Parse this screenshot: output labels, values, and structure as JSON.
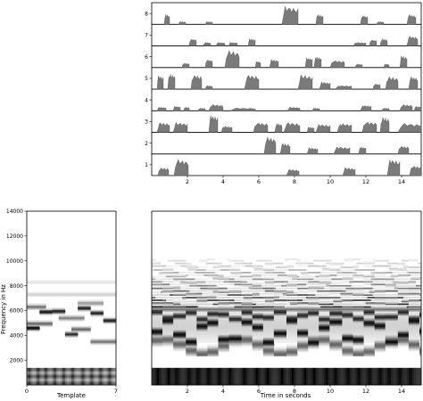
{
  "chart_data": [
    {
      "type": "area",
      "title": "",
      "xlabel": "",
      "ylabel": "",
      "xlim": [
        0,
        15.1
      ],
      "x_ticks": [
        2,
        4,
        6,
        8,
        10,
        12,
        14
      ],
      "row_labels": [
        "1",
        "2",
        "3",
        "4",
        "5",
        "6",
        "7",
        "8"
      ],
      "series": [
        {
          "row": "1",
          "activations": [
            {
              "start": 0.35,
              "end": 0.95,
              "level": 0.45
            },
            {
              "start": 1.25,
              "end": 2.05,
              "level": 0.9
            },
            {
              "start": 7.55,
              "end": 8.25,
              "level": 0.35
            },
            {
              "start": 10.7,
              "end": 11.4,
              "level": 0.45
            },
            {
              "start": 13.2,
              "end": 13.9,
              "level": 0.9
            },
            {
              "start": 14.45,
              "end": 15.1,
              "level": 0.55
            }
          ]
        },
        {
          "row": "2",
          "activations": [
            {
              "start": 6.3,
              "end": 6.95,
              "level": 0.95
            },
            {
              "start": 7.2,
              "end": 7.75,
              "level": 0.6
            },
            {
              "start": 8.7,
              "end": 9.3,
              "level": 0.35
            },
            {
              "start": 10.2,
              "end": 11.1,
              "level": 0.4
            },
            {
              "start": 11.6,
              "end": 12.0,
              "level": 0.4
            },
            {
              "start": 13.8,
              "end": 14.4,
              "level": 0.45
            }
          ]
        },
        {
          "row": "3",
          "activations": [
            {
              "start": 0.3,
              "end": 1.0,
              "level": 0.55
            },
            {
              "start": 1.2,
              "end": 2.0,
              "level": 0.55
            },
            {
              "start": 3.2,
              "end": 3.7,
              "level": 0.95
            },
            {
              "start": 3.9,
              "end": 4.5,
              "level": 0.35
            },
            {
              "start": 5.7,
              "end": 6.5,
              "level": 0.55
            },
            {
              "start": 6.9,
              "end": 7.3,
              "level": 0.5
            },
            {
              "start": 7.4,
              "end": 8.3,
              "level": 0.55
            },
            {
              "start": 8.7,
              "end": 9.1,
              "level": 0.3
            },
            {
              "start": 9.2,
              "end": 10.0,
              "level": 0.45
            },
            {
              "start": 10.4,
              "end": 11.2,
              "level": 0.5
            },
            {
              "start": 11.8,
              "end": 12.6,
              "level": 0.6
            },
            {
              "start": 12.8,
              "end": 13.3,
              "level": 0.85
            },
            {
              "start": 13.8,
              "end": 15.1,
              "level": 0.5
            }
          ]
        },
        {
          "row": "4",
          "activations": [
            {
              "start": 0.3,
              "end": 0.8,
              "level": 0.2
            },
            {
              "start": 1.2,
              "end": 1.6,
              "level": 0.25
            },
            {
              "start": 1.8,
              "end": 2.1,
              "level": 0.2
            },
            {
              "start": 2.6,
              "end": 3.0,
              "level": 0.15
            },
            {
              "start": 3.2,
              "end": 4.0,
              "level": 0.35
            },
            {
              "start": 4.4,
              "end": 5.8,
              "level": 0.15
            },
            {
              "start": 7.6,
              "end": 8.3,
              "level": 0.2
            },
            {
              "start": 9.0,
              "end": 9.4,
              "level": 0.15
            },
            {
              "start": 11.7,
              "end": 12.3,
              "level": 0.3
            },
            {
              "start": 12.9,
              "end": 13.3,
              "level": 0.15
            },
            {
              "start": 13.9,
              "end": 14.6,
              "level": 0.35
            },
            {
              "start": 14.7,
              "end": 15.1,
              "level": 0.25
            }
          ]
        },
        {
          "row": "5",
          "activations": [
            {
              "start": 0.3,
              "end": 0.65,
              "level": 0.75
            },
            {
              "start": 0.9,
              "end": 1.3,
              "level": 0.85
            },
            {
              "start": 2.2,
              "end": 2.8,
              "level": 0.8
            },
            {
              "start": 3.0,
              "end": 3.4,
              "level": 0.2
            },
            {
              "start": 5.2,
              "end": 6.0,
              "level": 0.8
            },
            {
              "start": 8.2,
              "end": 9.0,
              "level": 0.8
            },
            {
              "start": 9.4,
              "end": 10.0,
              "level": 0.4
            },
            {
              "start": 10.3,
              "end": 11.2,
              "level": 0.2
            },
            {
              "start": 12.4,
              "end": 12.8,
              "level": 0.3
            },
            {
              "start": 13.1,
              "end": 13.8,
              "level": 0.7
            },
            {
              "start": 14.4,
              "end": 14.9,
              "level": 0.7
            }
          ]
        },
        {
          "row": "6",
          "activations": [
            {
              "start": 1.7,
              "end": 2.1,
              "level": 0.25
            },
            {
              "start": 3.0,
              "end": 3.4,
              "level": 0.45
            },
            {
              "start": 4.1,
              "end": 4.9,
              "level": 0.95
            },
            {
              "start": 5.8,
              "end": 6.1,
              "level": 0.35
            },
            {
              "start": 6.6,
              "end": 7.1,
              "level": 0.45
            },
            {
              "start": 8.6,
              "end": 9.0,
              "level": 0.55
            },
            {
              "start": 9.1,
              "end": 9.5,
              "level": 0.6
            },
            {
              "start": 10.0,
              "end": 10.8,
              "level": 0.4
            },
            {
              "start": 11.4,
              "end": 11.8,
              "level": 0.2
            },
            {
              "start": 13.0,
              "end": 13.3,
              "level": 0.2
            },
            {
              "start": 13.9,
              "end": 14.3,
              "level": 0.65
            }
          ]
        },
        {
          "row": "7",
          "activations": [
            {
              "start": 2.1,
              "end": 2.5,
              "level": 0.4
            },
            {
              "start": 2.9,
              "end": 3.3,
              "level": 0.2
            },
            {
              "start": 3.6,
              "end": 4.1,
              "level": 0.2
            },
            {
              "start": 4.3,
              "end": 4.8,
              "level": 0.2
            },
            {
              "start": 5.4,
              "end": 5.8,
              "level": 0.4
            },
            {
              "start": 11.3,
              "end": 12.0,
              "level": 0.2
            },
            {
              "start": 12.2,
              "end": 12.6,
              "level": 0.35
            },
            {
              "start": 12.8,
              "end": 13.2,
              "level": 0.4
            },
            {
              "start": 14.3,
              "end": 14.9,
              "level": 0.55
            }
          ]
        },
        {
          "row": "8",
          "activations": [
            {
              "start": 0.7,
              "end": 1.0,
              "level": 0.55
            },
            {
              "start": 1.5,
              "end": 1.9,
              "level": 0.15
            },
            {
              "start": 3.0,
              "end": 3.4,
              "level": 0.15
            },
            {
              "start": 7.3,
              "end": 8.2,
              "level": 1.0
            },
            {
              "start": 9.2,
              "end": 9.6,
              "level": 0.55
            },
            {
              "start": 11.7,
              "end": 12.1,
              "level": 0.5
            },
            {
              "start": 12.6,
              "end": 13.0,
              "level": 0.15
            },
            {
              "start": 14.3,
              "end": 14.8,
              "level": 0.55
            }
          ]
        }
      ]
    },
    {
      "type": "heatmap",
      "title": "",
      "xlabel": "Template",
      "ylabel": "Frequency in Hz",
      "xlim": [
        0,
        7
      ],
      "ylim": [
        0,
        14000
      ],
      "x_ticks": [
        0,
        7
      ],
      "y_ticks": [
        2000,
        4000,
        6000,
        8000,
        10000,
        12000,
        14000
      ],
      "colormap": "gray_r",
      "onsets": [
        0.2,
        0.9,
        1.5,
        2.2,
        2.9,
        3.6,
        4.4,
        5.1,
        5.8,
        6.5
      ],
      "low_band_hz": [
        0,
        1400
      ],
      "peaks": [
        {
          "x0": 0.0,
          "x1": 1.0,
          "hz": 4600,
          "w": 1.0
        },
        {
          "x0": 1.0,
          "x1": 2.0,
          "hz": 5900,
          "w": 0.95
        },
        {
          "x0": 2.0,
          "x1": 3.0,
          "hz": 5950,
          "w": 0.9
        },
        {
          "x0": 3.0,
          "x1": 4.0,
          "hz": 4100,
          "w": 0.85
        },
        {
          "x0": 4.0,
          "x1": 5.0,
          "hz": 6200,
          "w": 0.9
        },
        {
          "x0": 5.0,
          "x1": 6.0,
          "hz": 5800,
          "w": 0.9
        },
        {
          "x0": 6.0,
          "x1": 7.0,
          "hz": 5200,
          "w": 0.9
        },
        {
          "x0": 0.0,
          "x1": 2.0,
          "hz": 4950,
          "w": 0.6
        },
        {
          "x0": 2.5,
          "x1": 4.5,
          "hz": 5400,
          "w": 0.5
        },
        {
          "x0": 3.5,
          "x1": 5.0,
          "hz": 4500,
          "w": 0.6
        },
        {
          "x0": 5.0,
          "x1": 7.0,
          "hz": 3500,
          "w": 0.55
        },
        {
          "x0": 0.0,
          "x1": 1.5,
          "hz": 6300,
          "w": 0.55
        },
        {
          "x0": 4.0,
          "x1": 6.0,
          "hz": 6600,
          "w": 0.4
        },
        {
          "x0": 0.0,
          "x1": 7.0,
          "hz": 7300,
          "w": 0.2
        },
        {
          "x0": 0.0,
          "x1": 7.0,
          "hz": 8300,
          "w": 0.12
        }
      ]
    },
    {
      "type": "heatmap",
      "title": "",
      "xlabel": "Time in seconds",
      "ylabel": "",
      "xlim": [
        0,
        15.1
      ],
      "ylim": [
        0,
        14000
      ],
      "x_ticks": [
        2,
        4,
        6,
        8,
        10,
        12,
        14
      ],
      "colormap": "gray_r",
      "onsets": [
        0.35,
        0.95,
        1.4,
        2.1,
        2.6,
        3.2,
        3.8,
        4.4,
        5.2,
        5.9,
        6.5,
        7.3,
        7.9,
        8.6,
        9.1,
        9.8,
        10.3,
        11.0,
        11.6,
        12.2,
        12.8,
        13.3,
        13.9,
        14.5
      ],
      "low_band_hz": [
        0,
        1400
      ],
      "mid_band_hz": [
        3800,
        6200
      ],
      "harmonic_band_hz": [
        6200,
        10200
      ]
    }
  ]
}
